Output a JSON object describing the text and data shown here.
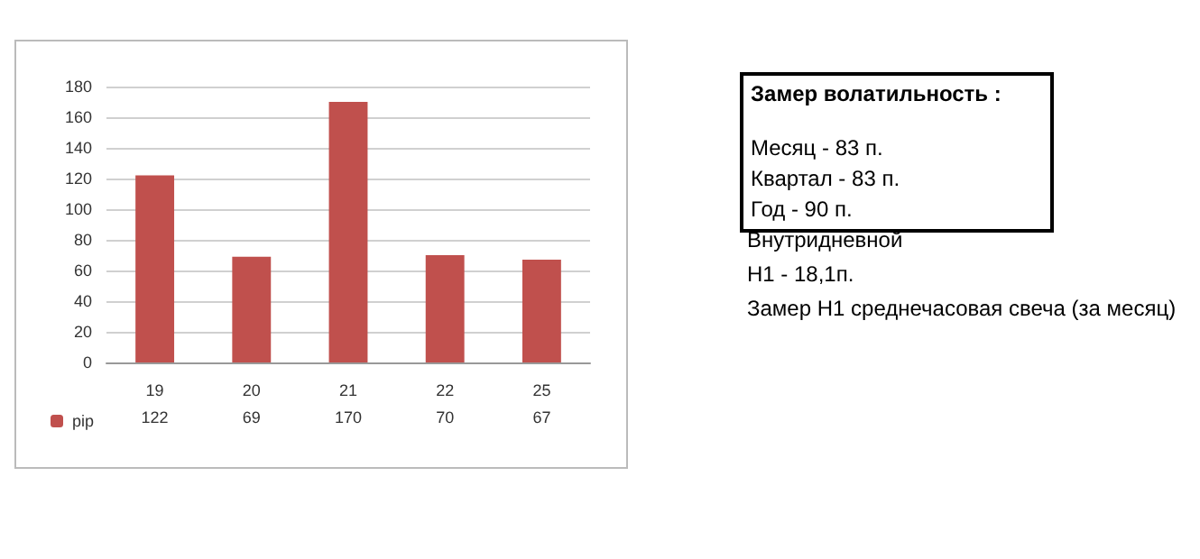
{
  "chart_data": {
    "type": "bar",
    "categories": [
      "19",
      "20",
      "21",
      "22",
      "25"
    ],
    "series": [
      {
        "name": "pip",
        "color": "#c0504d",
        "values": [
          122,
          69,
          170,
          70,
          67
        ]
      }
    ],
    "ylim": [
      0,
      180
    ],
    "yticks": [
      0,
      20,
      40,
      60,
      80,
      100,
      120,
      140,
      160,
      180
    ],
    "grid": "y",
    "legend": "bottom left",
    "data_labels": true,
    "annotations": [
      "Замер  волатильность  :",
      "Месяц - 83 п.",
      "Квартал - 83 п.",
      "Год - 90 п.",
      "Внутридневной",
      "H1 - 18,1п.",
      "Замер H1 среднечасовая свеча (за месяц)"
    ]
  }
}
